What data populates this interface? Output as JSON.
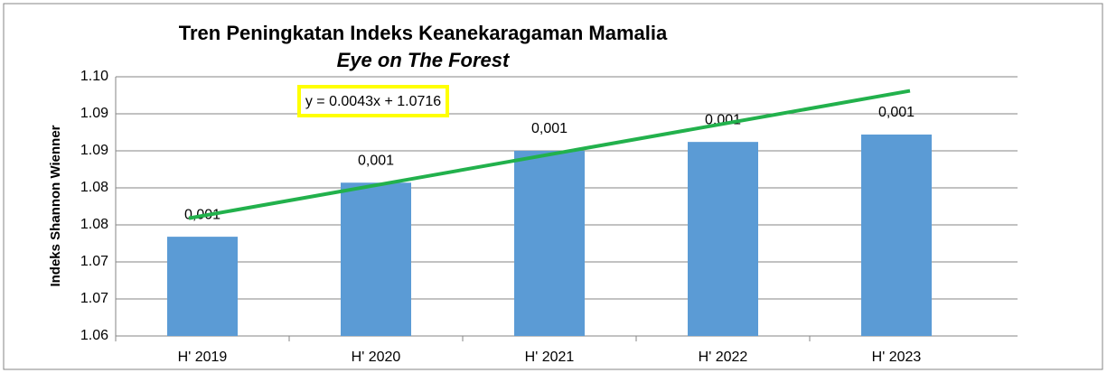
{
  "chart_data": {
    "type": "bar",
    "title": "Tren Peningkatan Indeks Keanekaragaman Mamalia",
    "subtitle": "Eye on The Forest",
    "y_label": "Indeks Shannon Wienner",
    "categories": [
      "H' 2019",
      "H' 2020",
      "H' 2021",
      "H' 2022",
      "H' 2023"
    ],
    "values": [
      1.0734,
      1.0807,
      1.085,
      1.0862,
      1.0872
    ],
    "data_labels": [
      "0,001",
      "0,001",
      "0,001",
      "0,001",
      "0,001"
    ],
    "color": "#5b9bd5",
    "ylim": [
      1.06,
      1.095
    ],
    "yticks": [
      1.06,
      {
        "value": 1.065,
        "label": "1.07"
      },
      1.07,
      {
        "value": 1.075,
        "label": "1.08"
      },
      1.08,
      {
        "value": 1.085,
        "label": "1.09"
      },
      1.09,
      {
        "value": 1.095,
        "label": "1.10"
      }
    ],
    "grid": true,
    "trendline": {
      "slope": 0.0043,
      "intercept": 1.0716,
      "color": "#22b14c",
      "equation": "y = 0.0043x + 1.0716"
    }
  }
}
